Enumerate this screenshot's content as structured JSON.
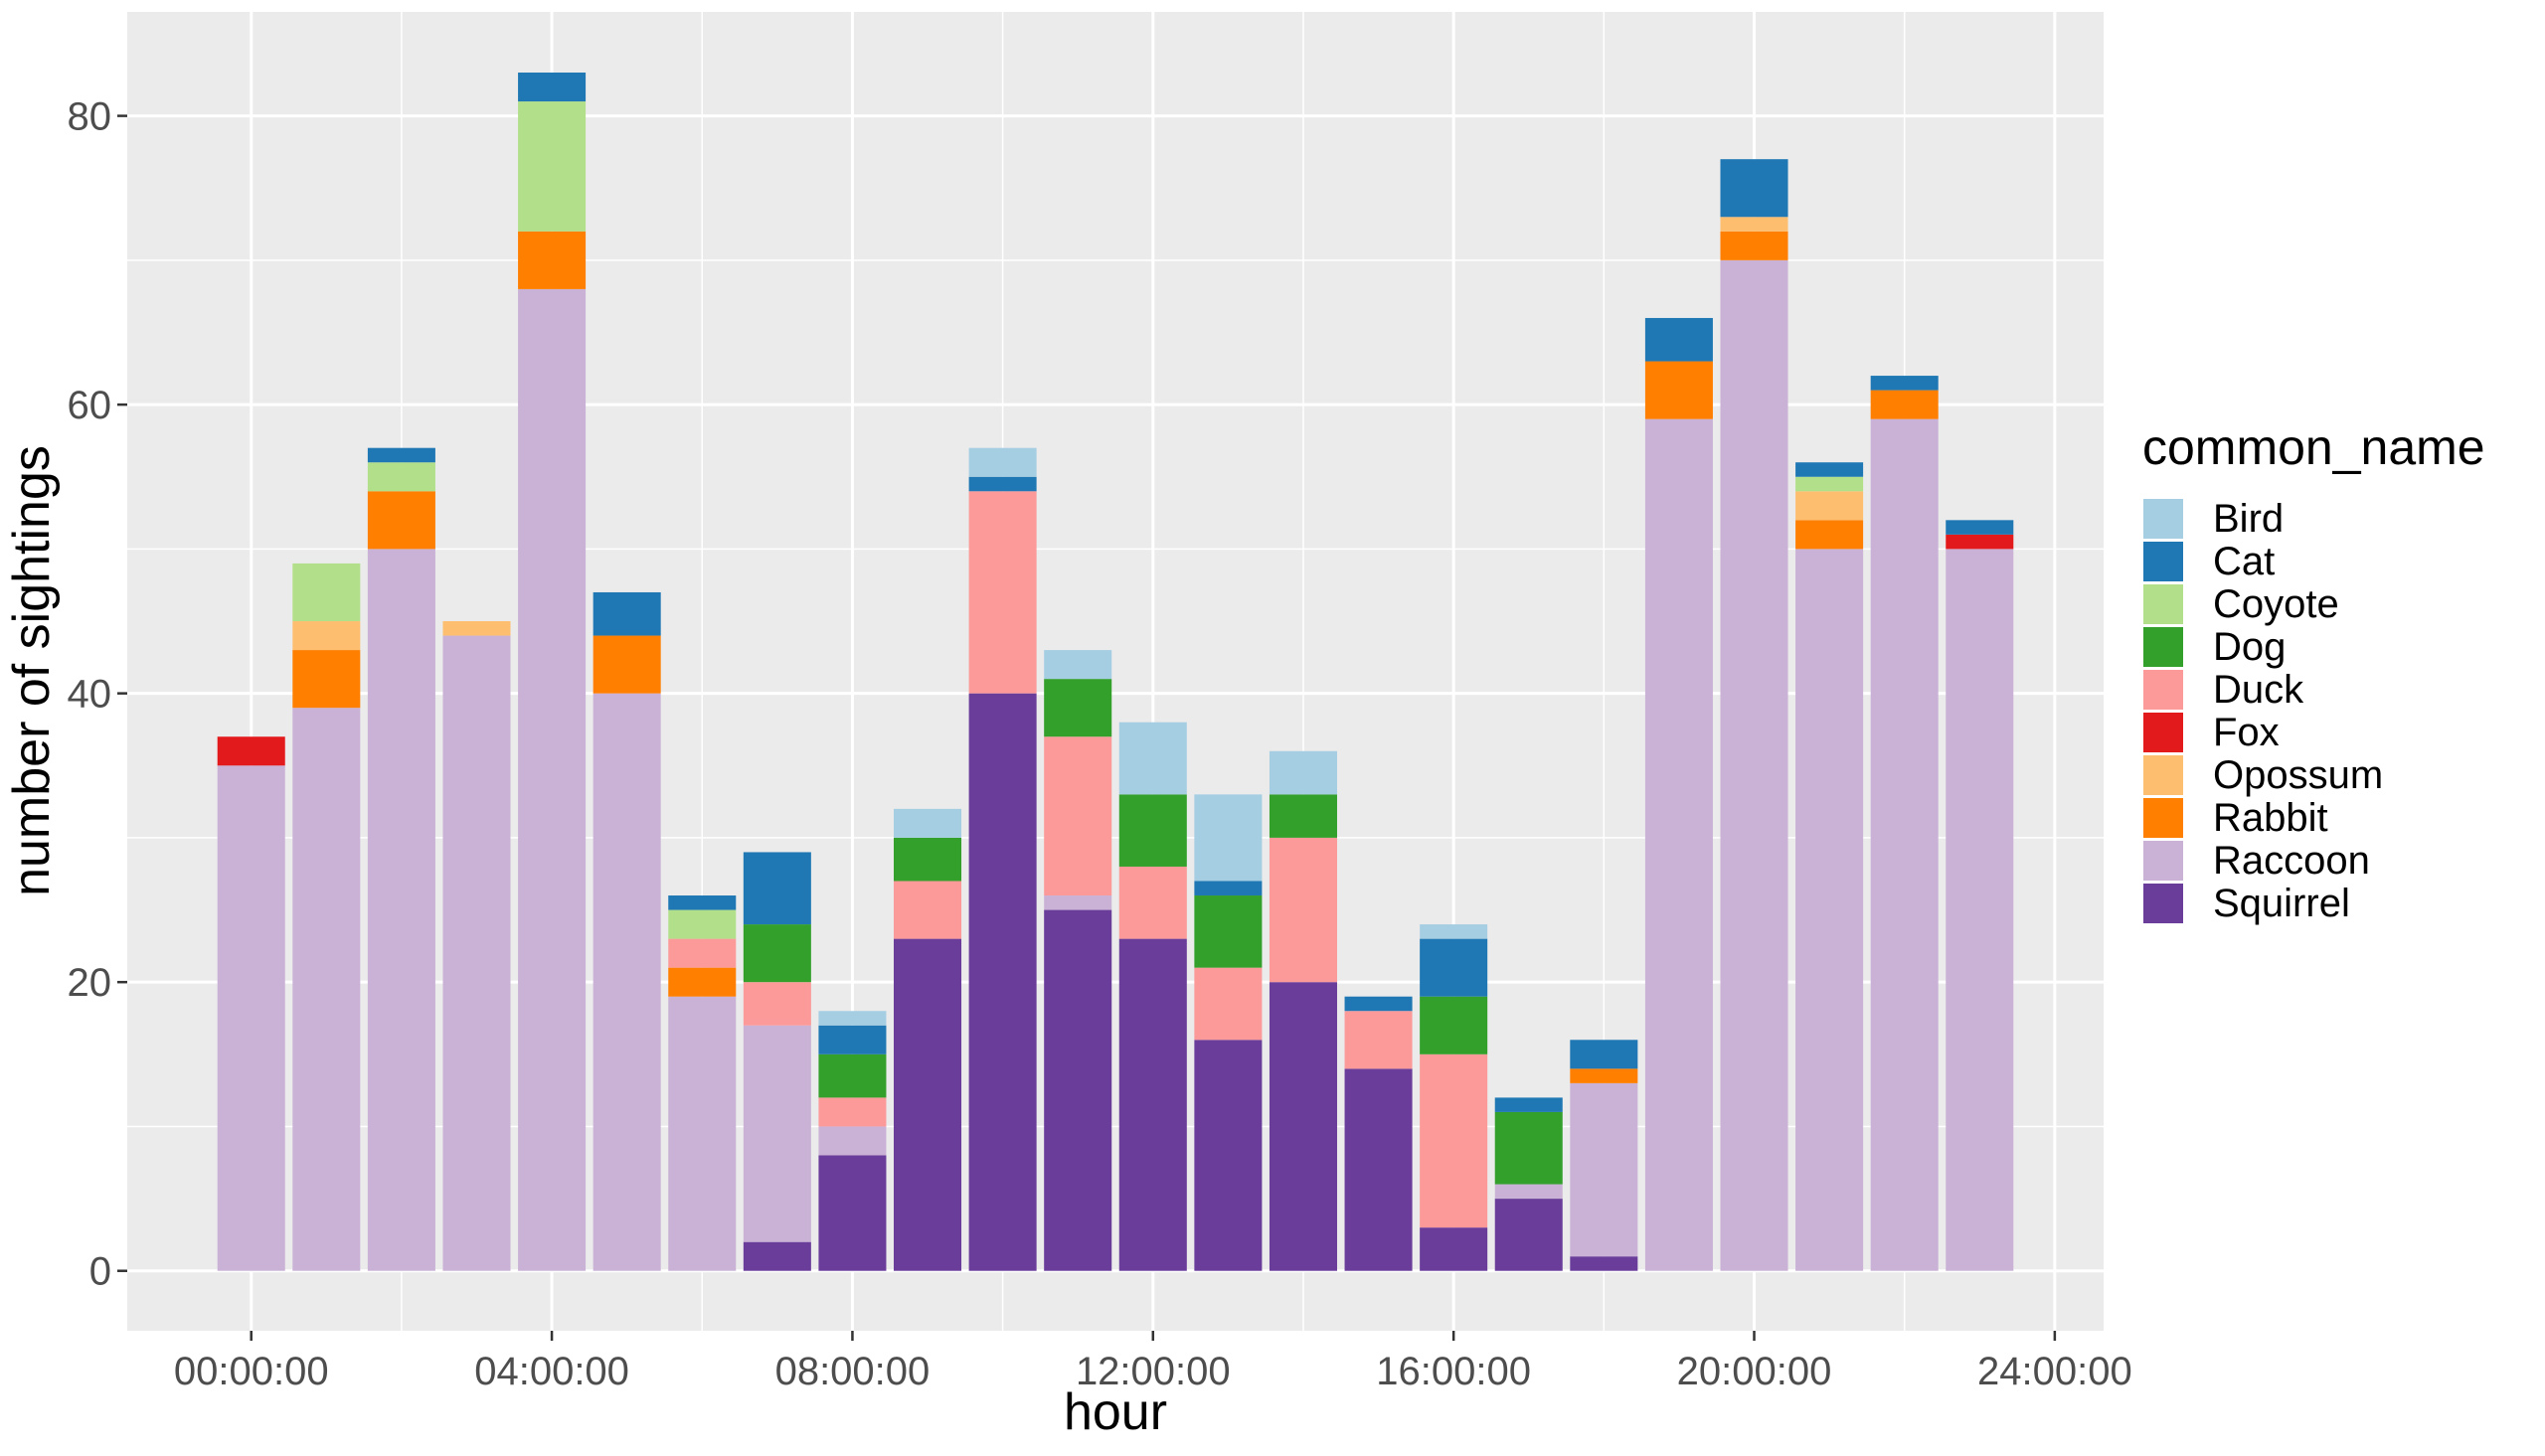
{
  "chart_data": {
    "type": "bar",
    "stacked": true,
    "xlabel": "hour",
    "ylabel": "number of sightings",
    "x_tick_labels": [
      "00:00:00",
      "04:00:00",
      "08:00:00",
      "12:00:00",
      "16:00:00",
      "20:00:00",
      "24:00:00"
    ],
    "x_tick_hours": [
      0,
      4,
      8,
      12,
      16,
      20,
      24
    ],
    "y_ticks": [
      0,
      20,
      40,
      60,
      80
    ],
    "xlim": [
      -1.65,
      24.65
    ],
    "ylim": [
      -4.15,
      87.2
    ],
    "grid": true,
    "legend": {
      "title": "common_name",
      "position": "right",
      "order": [
        "Bird",
        "Cat",
        "Coyote",
        "Dog",
        "Duck",
        "Fox",
        "Opossum",
        "Rabbit",
        "Raccoon",
        "Squirrel"
      ]
    },
    "colors": {
      "Bird": "#A6CEE3",
      "Cat": "#1F78B4",
      "Coyote": "#B2DF8A",
      "Dog": "#33A02C",
      "Duck": "#FB9A99",
      "Fox": "#E31A1C",
      "Opossum": "#FDBF6F",
      "Rabbit": "#FF7F00",
      "Raccoon": "#CAB2D6",
      "Squirrel": "#6A3D9A"
    },
    "hours": [
      0,
      1,
      2,
      3,
      4,
      5,
      6,
      7,
      8,
      9,
      10,
      11,
      12,
      13,
      14,
      15,
      16,
      17,
      18,
      19,
      20,
      21,
      22,
      23
    ],
    "series": [
      {
        "name": "Squirrel",
        "values": [
          0,
          0,
          0,
          0,
          0,
          0,
          0,
          2,
          8,
          23,
          40,
          25,
          23,
          16,
          20,
          14,
          3,
          5,
          1,
          0,
          0,
          0,
          0,
          0
        ]
      },
      {
        "name": "Raccoon",
        "values": [
          35,
          39,
          50,
          44,
          68,
          40,
          19,
          15,
          2,
          0,
          0,
          1,
          0,
          0,
          0,
          0,
          0,
          1,
          12,
          59,
          70,
          50,
          59,
          50
        ]
      },
      {
        "name": "Rabbit",
        "values": [
          0,
          4,
          4,
          0,
          4,
          4,
          2,
          0,
          0,
          0,
          0,
          0,
          0,
          0,
          0,
          0,
          0,
          0,
          1,
          4,
          2,
          2,
          2,
          0
        ]
      },
      {
        "name": "Opossum",
        "values": [
          0,
          2,
          0,
          1,
          0,
          0,
          0,
          0,
          0,
          0,
          0,
          0,
          0,
          0,
          0,
          0,
          0,
          0,
          0,
          0,
          1,
          2,
          0,
          0
        ]
      },
      {
        "name": "Fox",
        "values": [
          2,
          0,
          0,
          0,
          0,
          0,
          0,
          0,
          0,
          0,
          0,
          0,
          0,
          0,
          0,
          0,
          0,
          0,
          0,
          0,
          0,
          0,
          0,
          1
        ]
      },
      {
        "name": "Duck",
        "values": [
          0,
          0,
          0,
          0,
          0,
          0,
          2,
          3,
          2,
          4,
          14,
          11,
          5,
          5,
          10,
          4,
          12,
          0,
          0,
          0,
          0,
          0,
          0,
          0
        ]
      },
      {
        "name": "Dog",
        "values": [
          0,
          0,
          0,
          0,
          0,
          0,
          0,
          4,
          3,
          3,
          0,
          4,
          5,
          5,
          3,
          0,
          4,
          5,
          0,
          0,
          0,
          0,
          0,
          0
        ]
      },
      {
        "name": "Coyote",
        "values": [
          0,
          4,
          2,
          0,
          9,
          0,
          2,
          0,
          0,
          0,
          0,
          0,
          0,
          0,
          0,
          0,
          0,
          0,
          0,
          0,
          0,
          1,
          0,
          0
        ]
      },
      {
        "name": "Cat",
        "values": [
          0,
          0,
          1,
          0,
          2,
          3,
          1,
          5,
          2,
          0,
          1,
          0,
          0,
          1,
          0,
          1,
          4,
          1,
          2,
          3,
          4,
          1,
          1,
          1
        ]
      },
      {
        "name": "Bird",
        "values": [
          0,
          0,
          0,
          0,
          0,
          0,
          0,
          0,
          1,
          2,
          2,
          2,
          5,
          6,
          3,
          0,
          1,
          0,
          0,
          0,
          0,
          0,
          0,
          0
        ]
      }
    ]
  }
}
